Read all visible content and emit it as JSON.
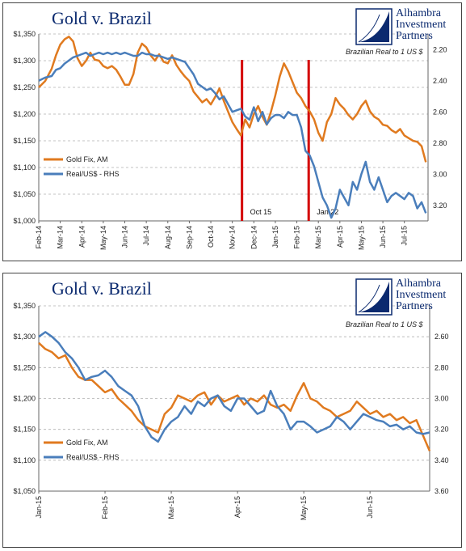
{
  "colors": {
    "gold": "#e07a1f",
    "real": "#4a7ebb",
    "marker": "#d40000",
    "title": "#0b2a6f",
    "grid": "#b0b0b0"
  },
  "chart_data": [
    {
      "type": "line",
      "title": "Gold v. Brazil",
      "note": "Brazilian Real to 1 US $",
      "logo": {
        "line1": "Alhambra",
        "line2": "Investment",
        "line3": "Partners"
      },
      "y_left": {
        "min": 1000,
        "max": 1350,
        "ticks": [
          "$1,000",
          "$1,050",
          "$1,100",
          "$1,150",
          "$1,200",
          "$1,250",
          "$1,300",
          "$1,350"
        ]
      },
      "y_right": {
        "min": 3.3,
        "max": 2.1,
        "inverted": true,
        "ticks": [
          "3.20",
          "3.00",
          "2.80",
          "2.60",
          "2.40",
          "2.20"
        ]
      },
      "x_labels": [
        "Feb-14",
        "Mar-14",
        "Apr-14",
        "May-14",
        "Jun-14",
        "Jul-14",
        "Aug-14",
        "Sep-14",
        "Oct-14",
        "Nov-14",
        "Dec-14",
        "Jan-15",
        "Feb-15",
        "Mar-15",
        "Apr-15",
        "May-15",
        "Jun-15",
        "Jul-15"
      ],
      "x_range": [
        0,
        18.1
      ],
      "grid": true,
      "legend_placement": "left",
      "series": [
        {
          "name": "Gold Fix, AM",
          "axis": "left",
          "x": [
            0,
            0.3,
            0.6,
            0.8,
            1.0,
            1.2,
            1.4,
            1.6,
            1.8,
            2.0,
            2.2,
            2.4,
            2.6,
            2.8,
            3.0,
            3.2,
            3.4,
            3.6,
            3.8,
            4.0,
            4.2,
            4.4,
            4.6,
            4.8,
            5.0,
            5.2,
            5.4,
            5.6,
            5.8,
            6.0,
            6.2,
            6.4,
            6.6,
            6.8,
            7.0,
            7.2,
            7.4,
            7.6,
            7.8,
            8.0,
            8.2,
            8.4,
            8.6,
            8.8,
            9.0,
            9.2,
            9.4,
            9.6,
            9.8,
            10.0,
            10.2,
            10.4,
            10.6,
            10.8,
            11.0,
            11.2,
            11.4,
            11.6,
            11.8,
            12.0,
            12.2,
            12.4,
            12.6,
            12.8,
            13.0,
            13.2,
            13.4,
            13.6,
            13.8,
            14.0,
            14.2,
            14.4,
            14.6,
            14.8,
            15.0,
            15.2,
            15.4,
            15.6,
            15.8,
            16.0,
            16.2,
            16.4,
            16.6,
            16.8,
            17.0,
            17.2,
            17.4,
            17.6,
            17.8,
            18.0
          ],
          "values": [
            1250,
            1262,
            1285,
            1310,
            1330,
            1340,
            1345,
            1336,
            1305,
            1290,
            1300,
            1315,
            1302,
            1300,
            1290,
            1286,
            1290,
            1283,
            1270,
            1255,
            1255,
            1275,
            1315,
            1332,
            1325,
            1310,
            1300,
            1312,
            1298,
            1295,
            1310,
            1292,
            1280,
            1270,
            1262,
            1242,
            1232,
            1222,
            1228,
            1218,
            1232,
            1248,
            1225,
            1205,
            1185,
            1172,
            1160,
            1190,
            1175,
            1200,
            1215,
            1195,
            1180,
            1205,
            1235,
            1270,
            1295,
            1280,
            1260,
            1240,
            1230,
            1215,
            1205,
            1190,
            1165,
            1150,
            1185,
            1200,
            1230,
            1218,
            1210,
            1198,
            1190,
            1200,
            1215,
            1225,
            1205,
            1195,
            1190,
            1180,
            1178,
            1170,
            1165,
            1172,
            1160,
            1155,
            1150,
            1148,
            1140,
            1110
          ]
        },
        {
          "name": "Real/US$ - RHS",
          "axis": "right",
          "x": [
            0,
            0.3,
            0.6,
            0.8,
            1.0,
            1.2,
            1.4,
            1.6,
            1.8,
            2.0,
            2.2,
            2.4,
            2.6,
            2.8,
            3.0,
            3.2,
            3.4,
            3.6,
            3.8,
            4.0,
            4.2,
            4.4,
            4.6,
            4.8,
            5.0,
            5.2,
            5.4,
            5.6,
            5.8,
            6.0,
            6.2,
            6.4,
            6.6,
            6.8,
            7.0,
            7.2,
            7.4,
            7.6,
            7.8,
            8.0,
            8.2,
            8.4,
            8.6,
            8.8,
            9.0,
            9.2,
            9.4,
            9.6,
            9.8,
            10.0,
            10.2,
            10.4,
            10.6,
            10.8,
            11.0,
            11.2,
            11.4,
            11.6,
            11.8,
            12.0,
            12.2,
            12.4,
            12.6,
            12.8,
            13.0,
            13.2,
            13.4,
            13.6,
            13.8,
            14.0,
            14.2,
            14.4,
            14.6,
            14.8,
            15.0,
            15.2,
            15.4,
            15.6,
            15.8,
            16.0,
            16.2,
            16.4,
            16.6,
            16.8,
            17.0,
            17.2,
            17.4,
            17.6,
            17.8,
            18.0
          ],
          "values": [
            2.4,
            2.38,
            2.37,
            2.33,
            2.32,
            2.29,
            2.27,
            2.25,
            2.24,
            2.23,
            2.22,
            2.24,
            2.23,
            2.22,
            2.23,
            2.22,
            2.23,
            2.22,
            2.23,
            2.22,
            2.23,
            2.24,
            2.24,
            2.22,
            2.23,
            2.23,
            2.24,
            2.24,
            2.25,
            2.26,
            2.25,
            2.26,
            2.27,
            2.28,
            2.32,
            2.36,
            2.42,
            2.44,
            2.46,
            2.45,
            2.48,
            2.52,
            2.5,
            2.55,
            2.6,
            2.59,
            2.58,
            2.63,
            2.65,
            2.57,
            2.66,
            2.6,
            2.68,
            2.64,
            2.62,
            2.62,
            2.64,
            2.6,
            2.62,
            2.62,
            2.7,
            2.85,
            2.88,
            2.95,
            3.05,
            3.15,
            3.2,
            3.28,
            3.22,
            3.1,
            3.15,
            3.2,
            3.05,
            3.1,
            3.0,
            2.92,
            3.05,
            3.1,
            3.02,
            3.1,
            3.18,
            3.14,
            3.12,
            3.14,
            3.16,
            3.12,
            3.14,
            3.22,
            3.18,
            3.25
          ]
        }
      ],
      "markers": [
        {
          "x": 9.45,
          "label": "Oct 15"
        },
        {
          "x": 12.55,
          "label": "Jan 22"
        }
      ]
    },
    {
      "type": "line",
      "title": "Gold v. Brazil",
      "note": "Brazilian Real to 1 US $",
      "logo": {
        "line1": "Alhambra",
        "line2": "Investment",
        "line3": "Partners"
      },
      "y_left": {
        "min": 1050,
        "max": 1350,
        "ticks": [
          "$1,050",
          "$1,100",
          "$1,150",
          "$1,200",
          "$1,250",
          "$1,300",
          "$1,350"
        ]
      },
      "y_right": {
        "min": 3.6,
        "max": 2.4,
        "inverted": true,
        "ticks": [
          "3.60",
          "3.40",
          "3.20",
          "3.00",
          "2.80",
          "2.60"
        ]
      },
      "x_labels": [
        "Jan-15",
        "Feb-15",
        "Mar-15",
        "Apr-15",
        "May-15",
        "Jun-15"
      ],
      "x_range": [
        0,
        5.9
      ],
      "grid": true,
      "legend_placement": "left",
      "series": [
        {
          "name": "Gold Fix, AM",
          "axis": "left",
          "x": [
            0,
            0.1,
            0.2,
            0.3,
            0.4,
            0.5,
            0.6,
            0.7,
            0.8,
            0.9,
            1.0,
            1.1,
            1.2,
            1.3,
            1.4,
            1.5,
            1.6,
            1.7,
            1.8,
            1.9,
            2.0,
            2.1,
            2.2,
            2.3,
            2.4,
            2.5,
            2.6,
            2.7,
            2.8,
            2.9,
            3.0,
            3.1,
            3.2,
            3.3,
            3.4,
            3.5,
            3.6,
            3.7,
            3.8,
            3.9,
            4.0,
            4.1,
            4.2,
            4.3,
            4.4,
            4.5,
            4.6,
            4.7,
            4.8,
            4.9,
            5.0,
            5.1,
            5.2,
            5.3,
            5.4,
            5.5,
            5.6,
            5.7,
            5.8,
            5.9
          ],
          "values": [
            1290,
            1280,
            1275,
            1265,
            1270,
            1250,
            1235,
            1230,
            1230,
            1220,
            1210,
            1215,
            1200,
            1190,
            1180,
            1165,
            1155,
            1150,
            1145,
            1175,
            1185,
            1205,
            1200,
            1195,
            1205,
            1210,
            1190,
            1205,
            1195,
            1200,
            1205,
            1190,
            1200,
            1195,
            1205,
            1190,
            1185,
            1190,
            1180,
            1205,
            1225,
            1200,
            1195,
            1185,
            1180,
            1170,
            1175,
            1180,
            1195,
            1185,
            1175,
            1180,
            1170,
            1175,
            1165,
            1170,
            1160,
            1165,
            1140,
            1115
          ]
        },
        {
          "name": "Real/US$ - RHS",
          "axis": "right",
          "x": [
            0,
            0.1,
            0.2,
            0.3,
            0.4,
            0.5,
            0.6,
            0.7,
            0.8,
            0.9,
            1.0,
            1.1,
            1.2,
            1.3,
            1.4,
            1.5,
            1.6,
            1.7,
            1.8,
            1.9,
            2.0,
            2.1,
            2.2,
            2.3,
            2.4,
            2.5,
            2.6,
            2.7,
            2.8,
            2.9,
            3.0,
            3.1,
            3.2,
            3.3,
            3.4,
            3.5,
            3.6,
            3.7,
            3.8,
            3.9,
            4.0,
            4.1,
            4.2,
            4.3,
            4.4,
            4.5,
            4.6,
            4.7,
            4.8,
            4.9,
            5.0,
            5.1,
            5.2,
            5.3,
            5.4,
            5.5,
            5.6,
            5.7,
            5.8,
            5.9
          ],
          "values": [
            2.6,
            2.57,
            2.6,
            2.64,
            2.7,
            2.74,
            2.8,
            2.88,
            2.86,
            2.85,
            2.82,
            2.86,
            2.92,
            2.95,
            2.98,
            3.05,
            3.18,
            3.25,
            3.28,
            3.2,
            3.15,
            3.12,
            3.05,
            3.1,
            3.02,
            3.05,
            3.0,
            2.98,
            3.05,
            3.08,
            3.0,
            3.0,
            3.05,
            3.1,
            3.08,
            2.95,
            3.05,
            3.1,
            3.2,
            3.15,
            3.15,
            3.18,
            3.22,
            3.2,
            3.18,
            3.12,
            3.15,
            3.2,
            3.15,
            3.1,
            3.12,
            3.14,
            3.15,
            3.18,
            3.17,
            3.2,
            3.18,
            3.22,
            3.23,
            3.22
          ]
        }
      ],
      "markers": []
    }
  ]
}
